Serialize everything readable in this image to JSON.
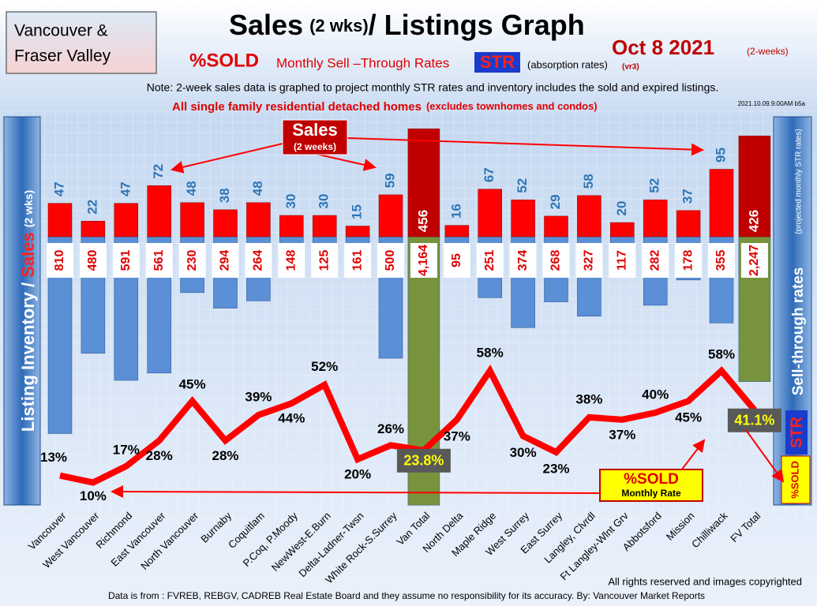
{
  "header": {
    "region": [
      "Vancouver &",
      "Fraser Valley"
    ],
    "title_main": "Sales",
    "title_small": "(2 wks)",
    "title_rest": "/ Listings Graph",
    "date": "Oct  8  2021",
    "date_note": "(2-weeks)",
    "sold": "%SOLD",
    "subtitle": "Monthly Sell –Through Rates",
    "str": "STR",
    "absorption": "(absorption rates)",
    "version": "(vr3)",
    "note": "Note: 2-week sales data is graphed to project monthly STR rates and inventory includes the sold and expired listings.",
    "scope": "All single family residential detached homes",
    "scope_note": "(excludes townhomes and condos)",
    "timestamp": "2021.10.09.9:00AM b5a"
  },
  "chart_data": {
    "type": "bar",
    "left_label": [
      "Listing Inventory /",
      "Sales",
      "(2  wks)"
    ],
    "right_label": [
      "Sell-through rates",
      "(projected monthly STR rates)",
      "STR",
      "%SOLD"
    ],
    "sales_callout": [
      "Sales",
      "(2 weeks)"
    ],
    "sold_callout": [
      "%SOLD",
      "Monthly Rate"
    ],
    "categories": [
      "Vancouver",
      "West Vancouver",
      "Richmond",
      "East Vancouver",
      "North Vancouver",
      "Burnaby",
      "Coquitlam",
      "P.Coq, P.Moody",
      "NewWest-E.Burn",
      "Delta-Ladner-Twsn",
      "White Rock-S.Surrey",
      "Van Total",
      "North Delta",
      "Maple Ridge",
      "West Surrey",
      "East Surrey",
      "Langley, Clvrdl",
      "Ft Langley-Wlnt Grv",
      "Abbotsford",
      "Mission",
      "Chilliwack",
      "FV Total"
    ],
    "totals": [
      11,
      21
    ],
    "sales": {
      "color": "#ff0000",
      "total_color": "#c00000",
      "label_color": "#2e75b6",
      "values": [
        47,
        22,
        47,
        72,
        48,
        38,
        48,
        30,
        30,
        15,
        59,
        456,
        16,
        67,
        52,
        29,
        58,
        20,
        52,
        37,
        95,
        426
      ]
    },
    "listings": {
      "color": "#5b8fd6",
      "total_color": "#77933c",
      "label_color": "#e00000",
      "values": [
        810,
        480,
        591,
        561,
        230,
        294,
        264,
        148,
        125,
        161,
        500,
        4164,
        95,
        251,
        374,
        268,
        327,
        117,
        282,
        178,
        355,
        2247
      ],
      "value_labels": [
        "810",
        "480",
        "591",
        "561",
        "230",
        "294",
        "264",
        "148",
        "125",
        "161",
        "500",
        "4,164",
        "95",
        "251",
        "374",
        "268",
        "327",
        "117",
        "282",
        "178",
        "355",
        "2,247"
      ]
    },
    "str": {
      "color": "#ff0000",
      "values": [
        13,
        10,
        17,
        28,
        45,
        28,
        39,
        44,
        52,
        20,
        26,
        23.8,
        37,
        58,
        30,
        23,
        38,
        37,
        40,
        45,
        58,
        41.1
      ],
      "value_labels": [
        "13%",
        "10%",
        "17%",
        "28%",
        "45%",
        "28%",
        "39%",
        "44%",
        "52%",
        "20%",
        "26%",
        "23.8%",
        "37%",
        "58%",
        "30%",
        "23%",
        "38%",
        "37%",
        "40%",
        "45%",
        "58%",
        "41.1%"
      ]
    }
  },
  "footer": {
    "rights": "All rights reserved and  images copyrighted",
    "source": "Data is from : FVREB, REBGV, CADREB Real Estate Board and they assume no responsibility for its accuracy. By: Vancouver Market Reports"
  }
}
